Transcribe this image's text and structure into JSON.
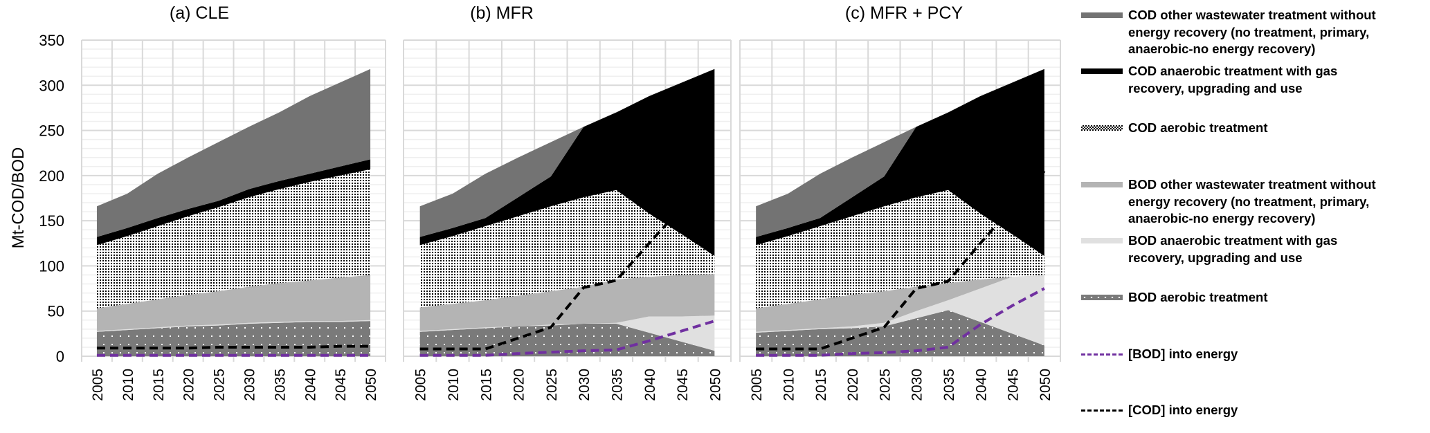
{
  "legend": [
    {
      "key": "cod_other",
      "lines": [
        "COD other wastewater treatment without",
        "energy recovery (no treatment, primary,",
        "anaerobic-no energy recovery)"
      ],
      "color": "#737373"
    },
    {
      "key": "cod_anaer",
      "lines": [
        "COD anaerobic treatment with gas",
        "recovery, upgrading and use"
      ],
      "color": "#000000"
    },
    {
      "key": "cod_aer",
      "lines": [
        "COD aerobic treatment"
      ],
      "color": "dots-black-on-white"
    },
    {
      "key": "bod_other",
      "lines": [
        "BOD other wastewater treatment without",
        "energy recovery (no treatment, primary,",
        "anaerobic-no energy recovery)"
      ],
      "color": "#b4b4b4"
    },
    {
      "key": "bod_anaer",
      "lines": [
        "BOD anaerobic treatment with gas",
        "recovery, upgrading and use"
      ],
      "color": "#e0e0e0"
    },
    {
      "key": "bod_aer",
      "lines": [
        "BOD aerobic treatment"
      ],
      "color": "dots-white-on-#7a7a7a"
    },
    {
      "key": "bod_energy",
      "lines": [
        "[BOD] into energy"
      ],
      "color": "#7030a0"
    },
    {
      "key": "cod_energy",
      "lines": [
        "[COD] into energy"
      ],
      "color": "#000000"
    }
  ],
  "chart_data": [
    {
      "type": "area",
      "stacked": true,
      "title": "(a) CLE",
      "ylabel": "Mt-COD/BOD",
      "ylim": [
        0,
        350
      ],
      "yticks": [
        "0",
        "50",
        "100",
        "150",
        "200",
        "250",
        "300",
        "350"
      ],
      "categories": [
        "2005",
        "2010",
        "2015",
        "2020",
        "2025",
        "2030",
        "2035",
        "2040",
        "2045",
        "2050"
      ],
      "series": [
        {
          "key": "bod_aer",
          "values": [
            27,
            29,
            31,
            33,
            34,
            36,
            37,
            38,
            38,
            39
          ]
        },
        {
          "key": "bod_anaer",
          "values": [
            1,
            1,
            1,
            1,
            1,
            1,
            1,
            1,
            1,
            1
          ]
        },
        {
          "key": "bod_other",
          "values": [
            25,
            28,
            31,
            34,
            37,
            40,
            43,
            45,
            48,
            50
          ]
        },
        {
          "key": "cod_aer",
          "values": [
            70,
            75,
            81,
            87,
            93,
            99,
            104,
            109,
            113,
            117
          ]
        },
        {
          "key": "cod_anaer",
          "values": [
            9,
            9,
            9,
            8,
            7,
            9,
            9,
            9,
            10,
            11
          ]
        },
        {
          "key": "cod_other",
          "values": [
            34,
            38,
            49,
            57,
            65,
            69,
            76,
            86,
            93,
            100
          ]
        }
      ],
      "lines": [
        {
          "key": "cod_energy",
          "values": [
            9,
            9,
            9,
            9,
            10,
            10,
            10,
            10,
            11,
            11
          ]
        },
        {
          "key": "bod_energy",
          "values": [
            1,
            1,
            1,
            1,
            1,
            1,
            1,
            1,
            1,
            1
          ]
        }
      ]
    },
    {
      "type": "area",
      "stacked": true,
      "title": "(b) MFR",
      "ylim": [
        0,
        350
      ],
      "categories": [
        "2005",
        "2010",
        "2015",
        "2020",
        "2025",
        "2030",
        "2035",
        "2040",
        "2045",
        "2050"
      ],
      "series": [
        {
          "key": "bod_aer",
          "values": [
            27,
            29,
            31,
            33,
            34,
            36,
            36,
            26,
            16,
            6
          ]
        },
        {
          "key": "bod_anaer",
          "values": [
            1,
            1,
            1,
            0,
            1,
            0,
            1,
            18,
            28,
            39
          ]
        },
        {
          "key": "bod_other",
          "values": [
            26,
            28,
            30,
            34,
            37,
            41,
            48,
            44,
            46,
            46
          ]
        },
        {
          "key": "cod_aer",
          "values": [
            69,
            75,
            82,
            88,
            94,
            99,
            99,
            70,
            45,
            20
          ]
        },
        {
          "key": "cod_anaer",
          "values": [
            9,
            9,
            9,
            21,
            33,
            78,
            86,
            130,
            168,
            207
          ]
        },
        {
          "key": "cod_other",
          "values": [
            34,
            38,
            49,
            44,
            38,
            0,
            0,
            0,
            0,
            0
          ]
        }
      ],
      "lines": [
        {
          "key": "cod_energy",
          "values": [
            8,
            8,
            8,
            20,
            32,
            76,
            84,
            125,
            165,
            205
          ]
        },
        {
          "key": "bod_energy",
          "values": [
            1,
            1,
            1,
            3,
            4.5,
            6,
            7,
            17,
            28,
            39
          ]
        }
      ]
    },
    {
      "type": "area",
      "stacked": true,
      "title": "(c) MFR + PCY",
      "ylim": [
        0,
        350
      ],
      "categories": [
        "2005",
        "2010",
        "2015",
        "2020",
        "2025",
        "2030",
        "2035",
        "2040",
        "2045",
        "2050"
      ],
      "series": [
        {
          "key": "bod_aer",
          "values": [
            26,
            28,
            30,
            31,
            33,
            42,
            51,
            38,
            25,
            12
          ]
        },
        {
          "key": "bod_anaer",
          "values": [
            1,
            1,
            1,
            2,
            4,
            8,
            11,
            37,
            63,
            78
          ]
        },
        {
          "key": "bod_other",
          "values": [
            26,
            29,
            32,
            35,
            35,
            27,
            19,
            10,
            0,
            0
          ]
        },
        {
          "key": "cod_aer",
          "values": [
            70,
            75,
            81,
            87,
            94,
            99,
            103,
            73,
            47,
            21
          ]
        },
        {
          "key": "cod_anaer",
          "values": [
            9,
            9,
            9,
            21,
            33,
            78,
            86,
            130,
            168,
            207
          ]
        },
        {
          "key": "cod_other",
          "values": [
            34,
            38,
            49,
            44,
            38,
            0,
            0,
            0,
            0,
            0
          ]
        }
      ],
      "lines": [
        {
          "key": "cod_energy",
          "values": [
            8,
            8,
            8,
            20,
            32,
            75,
            83,
            125,
            165,
            205
          ]
        },
        {
          "key": "bod_energy",
          "values": [
            1,
            1,
            1,
            3,
            4,
            6,
            10,
            35,
            56,
            75
          ]
        }
      ]
    }
  ]
}
